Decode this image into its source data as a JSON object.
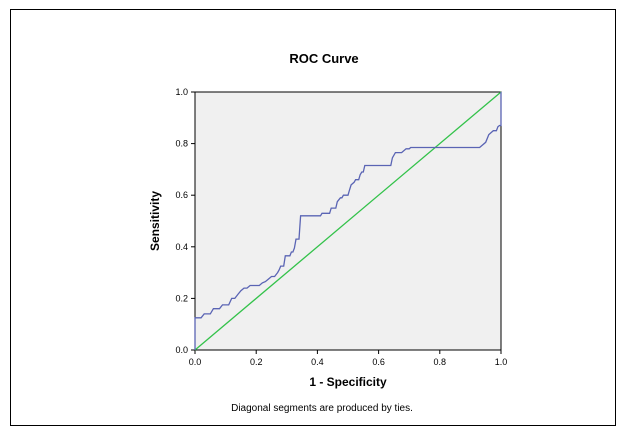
{
  "chart_data": {
    "type": "line",
    "title": "ROC Curve",
    "xlabel": "1 - Specificity",
    "ylabel": "Sensitivity",
    "footnote": "Diagonal segments are produced by ties.",
    "xlim": [
      0,
      1
    ],
    "ylim": [
      0,
      1
    ],
    "grid": false,
    "x_ticks": [
      "0.0",
      "0.2",
      "0.4",
      "0.6",
      "0.8",
      "1.0"
    ],
    "y_ticks": [
      "0.0",
      "0.2",
      "0.4",
      "0.6",
      "0.8",
      "1.0"
    ],
    "series": [
      {
        "color": "#5a64b4",
        "points": [
          [
            0.0,
            0.0
          ],
          [
            0.0,
            0.1
          ],
          [
            0.0,
            0.125
          ],
          [
            0.02,
            0.125
          ],
          [
            0.03,
            0.14
          ],
          [
            0.05,
            0.14
          ],
          [
            0.06,
            0.16
          ],
          [
            0.08,
            0.16
          ],
          [
            0.09,
            0.175
          ],
          [
            0.11,
            0.175
          ],
          [
            0.12,
            0.2
          ],
          [
            0.13,
            0.2
          ],
          [
            0.14,
            0.215
          ],
          [
            0.15,
            0.23
          ],
          [
            0.16,
            0.24
          ],
          [
            0.17,
            0.24
          ],
          [
            0.18,
            0.25
          ],
          [
            0.21,
            0.25
          ],
          [
            0.22,
            0.26
          ],
          [
            0.23,
            0.265
          ],
          [
            0.24,
            0.275
          ],
          [
            0.25,
            0.285
          ],
          [
            0.26,
            0.285
          ],
          [
            0.27,
            0.3
          ],
          [
            0.275,
            0.31
          ],
          [
            0.28,
            0.325
          ],
          [
            0.29,
            0.325
          ],
          [
            0.295,
            0.365
          ],
          [
            0.31,
            0.365
          ],
          [
            0.315,
            0.38
          ],
          [
            0.32,
            0.38
          ],
          [
            0.325,
            0.395
          ],
          [
            0.33,
            0.43
          ],
          [
            0.34,
            0.43
          ],
          [
            0.345,
            0.52
          ],
          [
            0.41,
            0.52
          ],
          [
            0.415,
            0.53
          ],
          [
            0.44,
            0.53
          ],
          [
            0.445,
            0.55
          ],
          [
            0.46,
            0.55
          ],
          [
            0.465,
            0.575
          ],
          [
            0.475,
            0.59
          ],
          [
            0.48,
            0.59
          ],
          [
            0.485,
            0.6
          ],
          [
            0.5,
            0.6
          ],
          [
            0.505,
            0.62
          ],
          [
            0.51,
            0.64
          ],
          [
            0.52,
            0.65
          ],
          [
            0.525,
            0.66
          ],
          [
            0.535,
            0.66
          ],
          [
            0.54,
            0.68
          ],
          [
            0.545,
            0.69
          ],
          [
            0.55,
            0.69
          ],
          [
            0.555,
            0.715
          ],
          [
            0.64,
            0.715
          ],
          [
            0.645,
            0.745
          ],
          [
            0.655,
            0.765
          ],
          [
            0.675,
            0.765
          ],
          [
            0.69,
            0.78
          ],
          [
            0.7,
            0.78
          ],
          [
            0.705,
            0.785
          ],
          [
            0.93,
            0.785
          ],
          [
            0.95,
            0.805
          ],
          [
            0.96,
            0.835
          ],
          [
            0.97,
            0.845
          ],
          [
            0.975,
            0.85
          ],
          [
            0.985,
            0.85
          ],
          [
            0.99,
            0.865
          ],
          [
            0.995,
            0.87
          ],
          [
            1.0,
            0.87
          ],
          [
            1.0,
            1.0
          ]
        ]
      },
      {
        "color": "#33c24a",
        "points": [
          [
            0,
            0
          ],
          [
            1,
            1
          ]
        ]
      }
    ]
  }
}
